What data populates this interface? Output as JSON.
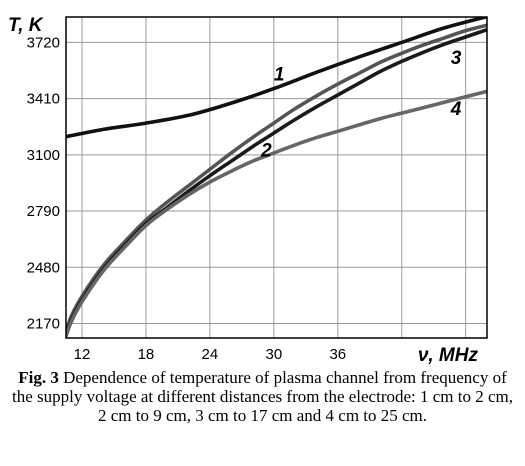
{
  "chart_data": {
    "type": "line",
    "ylabel": "T, K",
    "xlabel": "ν, MHz",
    "xlim": [
      10.5,
      50
    ],
    "ylim": [
      2090,
      3860
    ],
    "xticks": [
      12,
      18,
      24,
      30,
      36
    ],
    "yticks": [
      2170,
      2480,
      2790,
      3100,
      3410,
      3720
    ],
    "xtick_labels": [
      "12",
      "18",
      "24",
      "30",
      "36"
    ],
    "ytick_labels": [
      "2170",
      "2480",
      "2790",
      "3100",
      "3410",
      "3720"
    ],
    "grid": true,
    "series": [
      {
        "name": "1",
        "color": "#111111",
        "x": [
          10.5,
          14,
          18,
          22,
          26,
          30,
          34,
          38,
          42,
          46,
          50
        ],
        "y": [
          3200,
          3240,
          3275,
          3318,
          3385,
          3465,
          3555,
          3640,
          3720,
          3800,
          3862
        ]
      },
      {
        "name": "2",
        "color": "#555555",
        "x": [
          10.5,
          11,
          12,
          14,
          16,
          18,
          20,
          22,
          24,
          26,
          28,
          30,
          32,
          34,
          36,
          38,
          40,
          42,
          44,
          46,
          48,
          50
        ],
        "y": [
          2120,
          2210,
          2320,
          2490,
          2620,
          2740,
          2840,
          2930,
          3020,
          3110,
          3195,
          3275,
          3355,
          3425,
          3490,
          3550,
          3610,
          3660,
          3705,
          3745,
          3785,
          3815
        ]
      },
      {
        "name": "3",
        "color": "#1a1a1a",
        "x": [
          10.5,
          11,
          12,
          14,
          16,
          18,
          20,
          22,
          24,
          26,
          28,
          30,
          32,
          34,
          36,
          38,
          40,
          42,
          44,
          46,
          48,
          50
        ],
        "y": [
          2110,
          2190,
          2300,
          2470,
          2600,
          2720,
          2810,
          2900,
          2985,
          3065,
          3145,
          3220,
          3295,
          3365,
          3430,
          3495,
          3560,
          3615,
          3665,
          3710,
          3750,
          3790
        ]
      },
      {
        "name": "4",
        "color": "#666666",
        "x": [
          10.5,
          11,
          12,
          14,
          16,
          18,
          20,
          22,
          24,
          26,
          28,
          30,
          32,
          34,
          36,
          38,
          40,
          42,
          44,
          46,
          48,
          50
        ],
        "y": [
          2100,
          2180,
          2290,
          2460,
          2590,
          2710,
          2800,
          2880,
          2950,
          3010,
          3065,
          3110,
          3155,
          3195,
          3230,
          3265,
          3300,
          3330,
          3360,
          3390,
          3420,
          3450
        ]
      }
    ],
    "curve_labels": [
      {
        "text": "1",
        "x": 30.5,
        "y": 3510
      },
      {
        "text": "2",
        "x": 29.3,
        "y": 3090
      },
      {
        "text": "3",
        "x": 47.1,
        "y": 3600
      },
      {
        "text": "4",
        "x": 47.1,
        "y": 3320
      }
    ]
  },
  "caption": {
    "fig_label": "Fig. 3",
    "text": " Dependence of temperature of plasma channel from frequency of the supply voltage at different distances from the electrode: 1 cm to 2 cm, 2 cm to 9 cm, 3 cm to 17 cm and 4 cm to 25 cm."
  }
}
